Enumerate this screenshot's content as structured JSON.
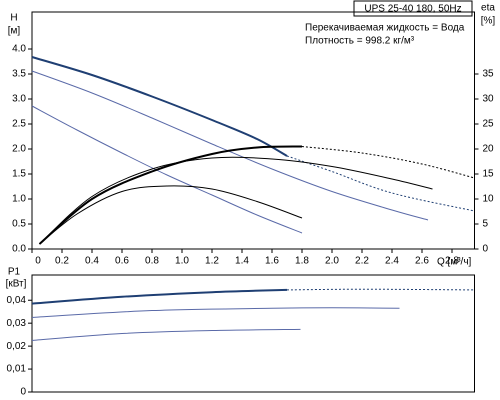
{
  "chart_data": [
    {
      "type": "line",
      "title": "UPS 25-40 180, 50Hz",
      "annotations": [
        "Перекачиваемая жидкость = Вода",
        "Плотность = 998.2 кг/м³"
      ],
      "y_label": "H",
      "y_unit": "[м]",
      "y2_label": "eta",
      "y2_unit": "[%]",
      "x_label": "Q [м³/ч]",
      "xlim": [
        0,
        2.95
      ],
      "xticks": [
        0,
        0.2,
        0.4,
        0.6,
        0.8,
        {
          "value": 1,
          "label": "1.0"
        },
        1.2,
        1.4,
        1.6,
        1.8,
        {
          "value": 2,
          "label": "2.0"
        },
        2.2,
        2.4,
        2.6,
        2.8
      ],
      "ylim": [
        0,
        4.74
      ],
      "yticks": [
        {
          "value": 0,
          "label": "0.0"
        },
        0.5,
        {
          "value": 1,
          "label": "1.0"
        },
        1.5,
        {
          "value": 2,
          "label": "2.0"
        },
        2.5,
        {
          "value": 3,
          "label": "3.0"
        },
        3.5,
        {
          "value": 4,
          "label": "4.0"
        }
      ],
      "y2lim": [
        0,
        47.4
      ],
      "y2ticks": [
        0,
        5,
        10,
        15,
        20,
        25,
        30,
        35
      ],
      "series": [
        {
          "color": "#5a6aa8",
          "width": 1,
          "x": [
            0,
            0.3,
            0.6,
            0.9,
            1.2,
            1.5,
            1.8
          ],
          "values": [
            2.86,
            2.38,
            1.92,
            1.48,
            1.08,
            0.68,
            0.32
          ]
        },
        {
          "color": "#5a6aa8",
          "width": 1,
          "x": [
            0,
            0.4,
            0.8,
            1.2,
            1.6,
            2.0,
            2.4,
            2.64
          ],
          "values": [
            3.56,
            3.12,
            2.62,
            2.1,
            1.6,
            1.15,
            0.78,
            0.58
          ]
        },
        {
          "color": "#1f3f73",
          "width": 2,
          "x": [
            0,
            0.4,
            0.8,
            1.2,
            1.5,
            1.7
          ],
          "values": [
            3.84,
            3.48,
            3.05,
            2.58,
            2.2,
            1.86
          ]
        },
        {
          "color": "#1f3f73",
          "width": 1,
          "dash": true,
          "x": [
            1.7,
            2.0,
            2.4,
            2.95
          ],
          "values": [
            1.86,
            1.55,
            1.12,
            0.76
          ]
        },
        {
          "color": "#000000",
          "width": 1,
          "axis": "y2",
          "x": [
            0.05,
            0.3,
            0.6,
            0.9,
            1.2,
            1.5,
            1.8
          ],
          "values": [
            1,
            7,
            11.5,
            12.6,
            12,
            9.5,
            6.2
          ]
        },
        {
          "color": "#000000",
          "width": 1,
          "axis": "y2",
          "x": [
            0.05,
            0.4,
            0.8,
            1.2,
            1.6,
            2.0,
            2.4,
            2.67
          ],
          "values": [
            1,
            10.5,
            16,
            18.2,
            18,
            16.5,
            14,
            12
          ]
        },
        {
          "color": "#000000",
          "width": 2,
          "axis": "y2",
          "x": [
            0.05,
            0.4,
            0.8,
            1.2,
            1.5,
            1.8
          ],
          "values": [
            1,
            10,
            15.5,
            19,
            20.3,
            20.5
          ]
        },
        {
          "color": "#000000",
          "width": 1,
          "dash": true,
          "axis": "y2",
          "x": [
            1.8,
            2.2,
            2.6,
            2.95
          ],
          "values": [
            20.5,
            19.2,
            17,
            14.2
          ]
        }
      ]
    },
    {
      "type": "line",
      "y_label": "P1",
      "y_unit": "[кВт]",
      "xlim": [
        0,
        2.95
      ],
      "ylim": [
        0,
        0.051
      ],
      "yticks": [
        0,
        {
          "value": 0.01,
          "label": "0,01"
        },
        {
          "value": 0.02,
          "label": "0,02"
        },
        {
          "value": 0.03,
          "label": "0,03"
        },
        {
          "value": 0.04,
          "label": "0,04"
        }
      ],
      "series": [
        {
          "color": "#5a6aa8",
          "width": 1,
          "x": [
            0,
            0.6,
            1.2,
            1.79
          ],
          "values": [
            0.0225,
            0.0255,
            0.0268,
            0.0273
          ]
        },
        {
          "color": "#5a6aa8",
          "width": 1,
          "x": [
            0,
            0.8,
            1.6,
            2.0,
            2.45
          ],
          "values": [
            0.0325,
            0.0355,
            0.0365,
            0.0367,
            0.0365
          ]
        },
        {
          "color": "#1f3f73",
          "width": 2,
          "x": [
            0,
            0.6,
            1.2,
            1.7
          ],
          "values": [
            0.0385,
            0.0415,
            0.0435,
            0.0445
          ]
        },
        {
          "color": "#1f3f73",
          "width": 1,
          "dash": true,
          "x": [
            1.7,
            2.2,
            2.95
          ],
          "values": [
            0.0445,
            0.0448,
            0.0445
          ]
        }
      ]
    }
  ]
}
